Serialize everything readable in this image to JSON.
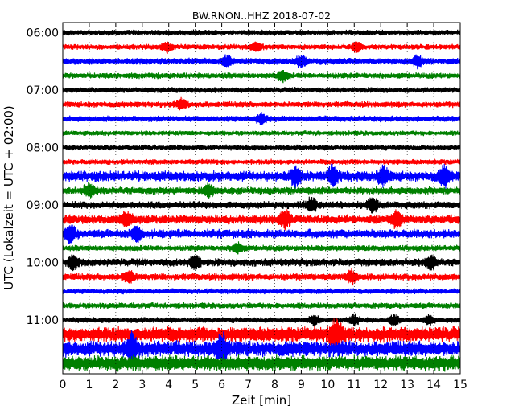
{
  "chart_data": {
    "type": "line",
    "title": "BW.RNON..HHZ 2018-07-02",
    "xlabel": "Zeit  [min]",
    "ylabel": "UTC (Lokalzeit = UTC + 02:00)",
    "xlim": [
      0,
      15
    ],
    "x_ticks": [
      "0",
      "1",
      "2",
      "3",
      "4",
      "5",
      "6",
      "7",
      "8",
      "9",
      "10",
      "11",
      "12",
      "13",
      "14",
      "15"
    ],
    "y_ticks": [
      {
        "label": "06:00",
        "minutes": 0
      },
      {
        "label": "07:00",
        "minutes": 60
      },
      {
        "label": "08:00",
        "minutes": 120
      },
      {
        "label": "09:00",
        "minutes": 180
      },
      {
        "label": "10:00",
        "minutes": 240
      },
      {
        "label": "11:00",
        "minutes": 300
      }
    ],
    "trace_interval_min": 15,
    "trace_colors": [
      "#000000",
      "#ff0000",
      "#0000ff",
      "#008000"
    ],
    "traces": [
      {
        "start": "06:00",
        "amplitude": 0.22
      },
      {
        "start": "06:15",
        "amplitude": 0.22,
        "bursts_min": [
          3.9,
          7.3,
          11.1
        ]
      },
      {
        "start": "06:30",
        "amplitude": 0.26,
        "bursts_min": [
          6.2,
          9.0,
          13.4
        ]
      },
      {
        "start": "06:45",
        "amplitude": 0.24,
        "bursts_min": [
          8.3
        ]
      },
      {
        "start": "07:00",
        "amplitude": 0.22
      },
      {
        "start": "07:15",
        "amplitude": 0.24,
        "bursts_min": [
          4.5
        ]
      },
      {
        "start": "07:30",
        "amplitude": 0.24,
        "bursts_min": [
          7.5
        ]
      },
      {
        "start": "07:45",
        "amplitude": 0.2
      },
      {
        "start": "08:00",
        "amplitude": 0.22
      },
      {
        "start": "08:15",
        "amplitude": 0.22
      },
      {
        "start": "08:30",
        "amplitude": 0.42,
        "bursts_min": [
          8.8,
          10.2,
          12.1,
          14.4
        ]
      },
      {
        "start": "08:45",
        "amplitude": 0.3,
        "bursts_min": [
          1.0,
          5.5
        ]
      },
      {
        "start": "09:00",
        "amplitude": 0.3,
        "bursts_min": [
          9.4,
          11.7
        ]
      },
      {
        "start": "09:15",
        "amplitude": 0.36,
        "bursts_min": [
          2.4,
          8.4,
          12.6
        ]
      },
      {
        "start": "09:30",
        "amplitude": 0.36,
        "bursts_min": [
          0.3,
          2.8
        ]
      },
      {
        "start": "09:45",
        "amplitude": 0.24,
        "bursts_min": [
          6.6
        ]
      },
      {
        "start": "10:00",
        "amplitude": 0.32,
        "bursts_min": [
          0.4,
          5.0,
          13.9
        ]
      },
      {
        "start": "10:15",
        "amplitude": 0.28,
        "bursts_min": [
          2.5,
          10.9
        ]
      },
      {
        "start": "10:30",
        "amplitude": 0.22
      },
      {
        "start": "10:45",
        "amplitude": 0.24
      },
      {
        "start": "11:00",
        "amplitude": 0.22,
        "bursts_min": [
          9.5,
          11.0,
          12.5,
          13.8
        ]
      },
      {
        "start": "11:15",
        "amplitude": 0.62,
        "bursts_min": [
          10.3
        ]
      },
      {
        "start": "11:30",
        "amplitude": 0.62,
        "bursts_min": [
          2.6,
          6.0
        ]
      },
      {
        "start": "11:45",
        "amplitude": 0.62
      }
    ],
    "grid": true,
    "legend": "none"
  }
}
